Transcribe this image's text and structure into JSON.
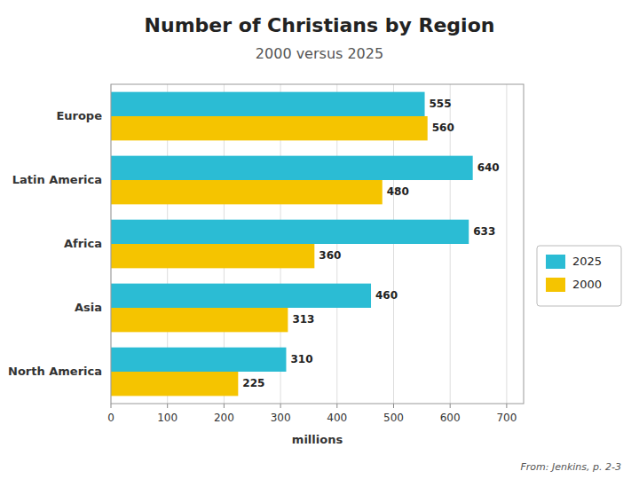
{
  "chart_data": {
    "type": "bar",
    "orientation": "horizontal",
    "title": "Number of Christians by Region",
    "subtitle": "2000 versus 2025",
    "categories": [
      "Europe",
      "Latin America",
      "Africa",
      "Asia",
      "North America"
    ],
    "series": [
      {
        "name": "2025",
        "color": "#2BBCD4",
        "values": [
          555,
          640,
          633,
          460,
          310
        ]
      },
      {
        "name": "2000",
        "color": "#F5C400",
        "values": [
          560,
          480,
          360,
          313,
          225
        ]
      }
    ],
    "xlabel": "millions",
    "xlim": [
      0,
      730
    ],
    "xticks": [
      0,
      100,
      200,
      300,
      400,
      500,
      600,
      700
    ],
    "grid": true,
    "legend": "right",
    "data_labels": true,
    "annotations": [
      "From: Jenkins, p. 2-3"
    ]
  }
}
